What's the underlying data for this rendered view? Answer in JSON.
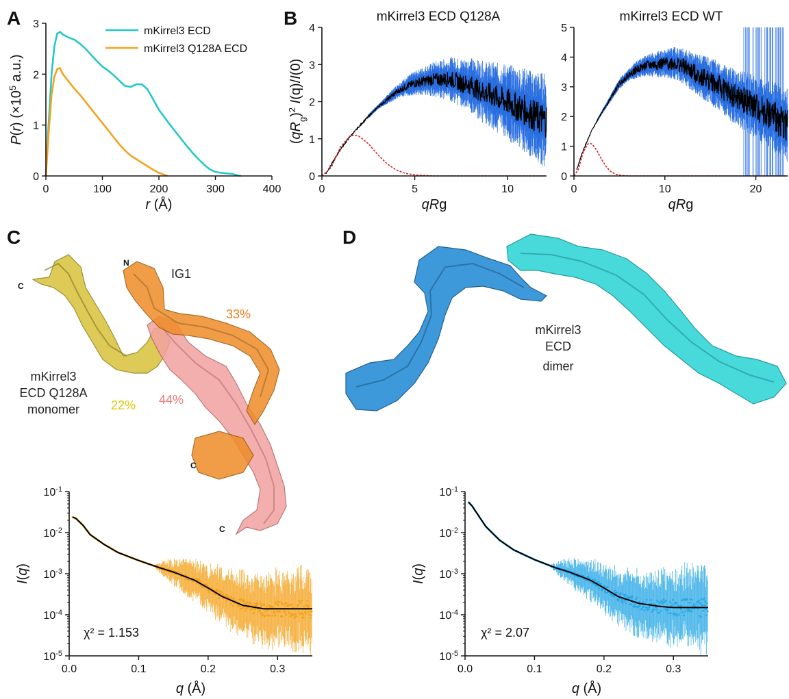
{
  "panel_letters": [
    "A",
    "B",
    "C",
    "D"
  ],
  "colors": {
    "wt_cyan": "#22c8c8",
    "q128a_orange": "#f4a21c",
    "guinier_red": "#d62020",
    "error_blue": "#2a6fe0",
    "fit_black": "#000000",
    "sax_c_orange": "#f4a21c",
    "sax_d_blue": "#29a8e6",
    "mol_yellow": "#d9c33a",
    "mol_orange": "#ef8c28",
    "mol_pink": "#f2a2a0",
    "mol_blue": "#2a8fd6",
    "mol_cyan": "#35d6d8",
    "pct_yellow": "#e3c400",
    "pct_orange": "#ef7d1a",
    "pct_pink": "#f07b7b"
  },
  "chart_data": [
    {
      "id": "A",
      "type": "line",
      "title": "",
      "xlabel": "r (Å)",
      "ylabel": "P(r) (×10⁵ a.u.)",
      "xlim": [
        0,
        400
      ],
      "ylim": [
        0,
        3
      ],
      "xticks": [
        "0",
        "100",
        "200",
        "300",
        "400"
      ],
      "yticks": [
        "0",
        "1",
        "2",
        "3"
      ],
      "legend_position": "top-right",
      "series": [
        {
          "name": "mKirrel3 ECD",
          "color": "#22c8c8",
          "x": [
            0,
            5,
            10,
            15,
            20,
            25,
            30,
            40,
            50,
            60,
            70,
            80,
            90,
            100,
            110,
            120,
            130,
            140,
            150,
            160,
            170,
            180,
            190,
            200,
            210,
            220,
            230,
            240,
            250,
            260,
            270,
            280,
            290,
            300,
            310,
            320,
            330,
            340,
            345
          ],
          "y": [
            0,
            1.05,
            2.0,
            2.55,
            2.8,
            2.83,
            2.78,
            2.72,
            2.68,
            2.6,
            2.5,
            2.38,
            2.26,
            2.15,
            2.07,
            1.98,
            1.87,
            1.77,
            1.75,
            1.8,
            1.8,
            1.7,
            1.5,
            1.3,
            1.15,
            1.0,
            0.86,
            0.72,
            0.58,
            0.45,
            0.33,
            0.22,
            0.13,
            0.08,
            0.06,
            0.05,
            0.04,
            0.01,
            0
          ]
        },
        {
          "name": "mKirrel3 Q128A ECD",
          "color": "#f4a21c",
          "x": [
            0,
            5,
            10,
            15,
            20,
            25,
            30,
            40,
            50,
            60,
            70,
            80,
            90,
            100,
            110,
            120,
            130,
            140,
            150,
            160,
            170,
            180,
            190,
            200,
            210,
            215
          ],
          "y": [
            0,
            0.85,
            1.6,
            1.95,
            2.1,
            2.12,
            2.0,
            1.86,
            1.72,
            1.6,
            1.46,
            1.32,
            1.18,
            1.04,
            0.9,
            0.76,
            0.62,
            0.5,
            0.4,
            0.33,
            0.26,
            0.19,
            0.12,
            0.06,
            0.02,
            0
          ]
        }
      ]
    },
    {
      "id": "B1",
      "type": "line",
      "title": "mKirrel3 ECD Q128A",
      "xlabel": "qRg",
      "ylabel": "(qRg)² I(q)/I(0)",
      "xlim": [
        0,
        12.1
      ],
      "ylim": [
        0,
        4
      ],
      "xticks": [
        "0",
        "5",
        "10"
      ],
      "yticks": [
        "0",
        "1",
        "2",
        "3",
        "4"
      ],
      "series": [
        {
          "name": "",
          "role": "data",
          "color": "#000000",
          "x": [
            0.2,
            0.5,
            1.0,
            1.5,
            2.0,
            2.5,
            3.0,
            3.5,
            4.0,
            4.5,
            5.0,
            5.5,
            6.0,
            6.5,
            7.0,
            7.5,
            8.0,
            8.5,
            9.0,
            9.5,
            10.0,
            10.5,
            11.0,
            11.5,
            12.0
          ],
          "y": [
            0.05,
            0.3,
            0.72,
            1.05,
            1.33,
            1.6,
            1.85,
            2.05,
            2.25,
            2.4,
            2.5,
            2.55,
            2.6,
            2.6,
            2.6,
            2.5,
            2.45,
            2.3,
            2.2,
            2.1,
            2.0,
            1.85,
            1.75,
            1.6,
            1.5
          ]
        },
        {
          "name": "",
          "role": "guinier_reference",
          "color": "#d62020",
          "x": [
            0,
            0.5,
            1.0,
            1.5,
            1.73,
            2.0,
            2.5,
            3.0,
            3.5,
            4.0,
            4.5,
            5.0,
            6.0,
            8.0,
            10.0,
            12.0
          ],
          "y": [
            0,
            0.23,
            0.78,
            1.07,
            1.1,
            1.07,
            0.87,
            0.58,
            0.33,
            0.16,
            0.07,
            0.03,
            0.0,
            0.0,
            0.0,
            0.0
          ]
        }
      ]
    },
    {
      "id": "B2",
      "type": "line",
      "title": "mKirrel3 ECD WT",
      "xlabel": "qRg",
      "ylabel": "",
      "xlim": [
        0,
        23.5
      ],
      "ylim": [
        0,
        5
      ],
      "xticks": [
        "0",
        "10",
        "20"
      ],
      "yticks": [
        "0",
        "1",
        "2",
        "3",
        "4",
        "5"
      ],
      "series": [
        {
          "name": "",
          "role": "data",
          "color": "#000000",
          "x": [
            0.3,
            1,
            2,
            3,
            4,
            5,
            6,
            7,
            8,
            9,
            10,
            11,
            12,
            13,
            14,
            15,
            16,
            17,
            18,
            19,
            20,
            21,
            22,
            23.5
          ],
          "y": [
            0.2,
            0.85,
            1.55,
            2.1,
            2.6,
            3.1,
            3.4,
            3.6,
            3.72,
            3.75,
            3.78,
            3.8,
            3.7,
            3.5,
            3.35,
            3.2,
            3.0,
            2.8,
            2.6,
            2.5,
            2.3,
            2.15,
            2.0,
            1.7
          ]
        },
        {
          "name": "",
          "role": "guinier_reference",
          "color": "#d62020",
          "x": [
            0,
            0.5,
            1.0,
            1.5,
            1.73,
            2.0,
            2.5,
            3.0,
            3.5,
            4.0,
            4.5,
            5.0,
            6.0,
            10.0,
            20.0,
            23.5
          ],
          "y": [
            0,
            0.23,
            0.78,
            1.07,
            1.1,
            1.07,
            0.87,
            0.58,
            0.33,
            0.16,
            0.07,
            0.03,
            0.0,
            0.0,
            0.0,
            0.0
          ]
        }
      ]
    },
    {
      "id": "C_saxs",
      "type": "scatter",
      "title": "",
      "xlabel": "q (Å)",
      "ylabel": "I(q)",
      "xlim": [
        0,
        0.35
      ],
      "ylim": [
        1e-05,
        0.1
      ],
      "yscale": "log",
      "xticks": [
        "0.0",
        "0.1",
        "0.2",
        "0.3"
      ],
      "annotation": "χ² = 1.153",
      "series": [
        {
          "name": "",
          "role": "experimental",
          "color": "#f4a21c",
          "x": [
            0.005,
            0.01,
            0.02,
            0.03,
            0.05,
            0.07,
            0.1,
            0.13,
            0.15,
            0.18,
            0.2,
            0.22,
            0.25,
            0.28,
            0.3,
            0.32,
            0.35
          ],
          "y": [
            0.024,
            0.022,
            0.015,
            0.009,
            0.0052,
            0.0033,
            0.0021,
            0.0014,
            0.0011,
            0.0007,
            0.00045,
            0.00028,
            0.00017,
            0.00014,
            0.00014,
            0.00014,
            0.00014
          ]
        },
        {
          "name": "",
          "role": "fit",
          "color": "#000000",
          "x": [
            0.005,
            0.01,
            0.02,
            0.03,
            0.05,
            0.07,
            0.1,
            0.13,
            0.15,
            0.18,
            0.2,
            0.22,
            0.25,
            0.28,
            0.3,
            0.32,
            0.35
          ],
          "y": [
            0.024,
            0.022,
            0.015,
            0.009,
            0.0052,
            0.0033,
            0.0021,
            0.0014,
            0.0011,
            0.0007,
            0.00045,
            0.00028,
            0.00017,
            0.00014,
            0.00014,
            0.00014,
            0.00014
          ]
        }
      ]
    },
    {
      "id": "D_saxs",
      "type": "scatter",
      "title": "",
      "xlabel": "q (Å)",
      "ylabel": "I(q)",
      "xlim": [
        0,
        0.35
      ],
      "ylim": [
        1e-05,
        0.1
      ],
      "yscale": "log",
      "xticks": [
        "0.0",
        "0.1",
        "0.2",
        "0.3"
      ],
      "annotation": "χ² = 2.07",
      "series": [
        {
          "name": "",
          "role": "experimental",
          "color": "#29a8e6",
          "x": [
            0.005,
            0.01,
            0.02,
            0.03,
            0.05,
            0.07,
            0.1,
            0.13,
            0.15,
            0.18,
            0.2,
            0.22,
            0.25,
            0.28,
            0.3,
            0.32,
            0.35
          ],
          "y": [
            0.055,
            0.045,
            0.025,
            0.014,
            0.0065,
            0.0038,
            0.0022,
            0.0014,
            0.0011,
            0.0007,
            0.00045,
            0.00028,
            0.00019,
            0.00016,
            0.00015,
            0.00015,
            0.00015
          ]
        },
        {
          "name": "",
          "role": "fit",
          "color": "#000000",
          "x": [
            0.005,
            0.01,
            0.02,
            0.03,
            0.05,
            0.07,
            0.1,
            0.13,
            0.15,
            0.18,
            0.2,
            0.22,
            0.25,
            0.28,
            0.3,
            0.32,
            0.35
          ],
          "y": [
            0.055,
            0.045,
            0.025,
            0.014,
            0.0065,
            0.0038,
            0.0022,
            0.0014,
            0.0011,
            0.0007,
            0.00045,
            0.00028,
            0.00019,
            0.00016,
            0.00015,
            0.00015,
            0.00015
          ]
        }
      ]
    }
  ],
  "structure_c": {
    "label_lines": [
      "mKirrel3",
      "ECD Q128A",
      "monomer"
    ],
    "domain_label": "IG1",
    "n_label": "N",
    "c_label": "C",
    "percent_yellow": "22%",
    "percent_orange": "33%",
    "percent_pink": "44%"
  },
  "structure_d": {
    "label_lines": [
      "mKirrel3",
      "ECD",
      "dimer"
    ]
  }
}
